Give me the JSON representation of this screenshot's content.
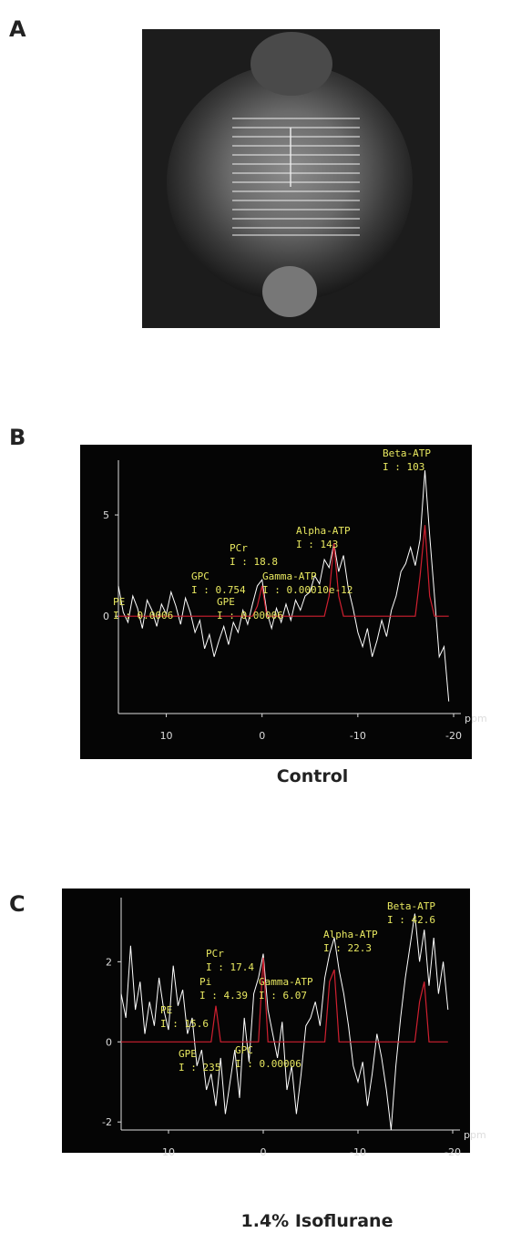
{
  "panel_labels": [
    "A",
    "B",
    "C"
  ],
  "chart_data": [
    {
      "type": "line",
      "caption": "Control",
      "xlabel": "ppm",
      "x": [
        15,
        14.5,
        14,
        13.5,
        13,
        12.5,
        12,
        11.5,
        11,
        10.5,
        10,
        9.5,
        9,
        8.5,
        8,
        7.5,
        7,
        6.5,
        6,
        5.5,
        5,
        4.5,
        4,
        3.5,
        3,
        2.5,
        2,
        1.5,
        1,
        0.5,
        0,
        -0.5,
        -1,
        -1.5,
        -2,
        -2.5,
        -3,
        -3.5,
        -4,
        -4.5,
        -5,
        -5.5,
        -6,
        -6.5,
        -7,
        -7.5,
        -8,
        -8.5,
        -9,
        -9.5,
        -10,
        -10.5,
        -11,
        -11.5,
        -12,
        -12.5,
        -13,
        -13.5,
        -14,
        -14.5,
        -15,
        -15.5,
        -16,
        -16.5,
        -17,
        -17.5,
        -18,
        -18.5,
        -19,
        -19.5
      ],
      "series": [
        {
          "color": "#ffffff",
          "values": [
            1.5,
            0.2,
            -0.3,
            1.0,
            0.4,
            -0.6,
            0.8,
            0.3,
            -0.5,
            0.6,
            0.1,
            1.2,
            0.5,
            -0.4,
            0.9,
            0.2,
            -0.8,
            -0.2,
            -1.6,
            -0.9,
            -2.0,
            -1.2,
            -0.5,
            -1.4,
            -0.3,
            -0.8,
            0.3,
            -0.4,
            0.6,
            1.5,
            1.8,
            0.2,
            -0.6,
            0.4,
            -0.3,
            0.6,
            -0.2,
            0.8,
            0.3,
            1.0,
            1.2,
            2.0,
            1.6,
            2.8,
            2.4,
            3.6,
            2.2,
            3.0,
            1.4,
            0.4,
            -0.8,
            -1.5,
            -0.6,
            -2.0,
            -1.2,
            -0.2,
            -1.0,
            0.3,
            1.0,
            2.2,
            2.6,
            3.4,
            2.5,
            3.8,
            7.2,
            4.0,
            1.0,
            -2.0,
            -1.5,
            -4.2
          ]
        },
        {
          "color": "#d02030",
          "values": [
            0,
            0,
            0,
            0,
            0,
            0,
            0,
            0,
            0,
            0,
            0,
            0,
            0,
            0,
            0,
            0,
            0,
            0,
            0,
            0,
            0,
            0,
            0,
            0,
            0,
            0,
            0,
            0,
            0,
            0.5,
            1.5,
            0,
            0,
            0,
            0,
            0,
            0,
            0,
            0,
            0,
            0,
            0,
            0,
            0,
            1.0,
            3.6,
            1.0,
            0,
            0,
            0,
            0,
            0,
            0,
            0,
            0,
            0,
            0,
            0,
            0,
            0,
            0,
            0,
            0,
            2.0,
            4.5,
            1.0,
            0,
            0,
            0,
            0
          ]
        }
      ],
      "xlim": [
        15,
        -20
      ],
      "xticks": [
        10,
        0,
        -10,
        -20
      ],
      "ylim": [
        -4.8,
        7.7
      ],
      "yticks": [
        0,
        5
      ],
      "annotations": [
        [
          "Beta-ATP",
          "I : 103"
        ],
        [
          "Alpha-ATP",
          "I : 143"
        ],
        [
          "PCr",
          "I : 18.8"
        ],
        [
          "GPC",
          "I : 0.754"
        ],
        [
          "Gamma-ATP",
          "I : 0.00010e-12"
        ],
        [
          "GPE",
          "I : 0.00006"
        ],
        [
          "PE",
          "I : 0.0006"
        ]
      ]
    },
    {
      "type": "line",
      "caption": "1.4% Isoflurane",
      "xlabel": "ppm",
      "x": [
        15,
        14.5,
        14,
        13.5,
        13,
        12.5,
        12,
        11.5,
        11,
        10.5,
        10,
        9.5,
        9,
        8.5,
        8,
        7.5,
        7,
        6.5,
        6,
        5.5,
        5,
        4.5,
        4,
        3.5,
        3,
        2.5,
        2,
        1.5,
        1,
        0.5,
        0,
        -0.5,
        -1,
        -1.5,
        -2,
        -2.5,
        -3,
        -3.5,
        -4,
        -4.5,
        -5,
        -5.5,
        -6,
        -6.5,
        -7,
        -7.5,
        -8,
        -8.5,
        -9,
        -9.5,
        -10,
        -10.5,
        -11,
        -11.5,
        -12,
        -12.5,
        -13,
        -13.5,
        -14,
        -14.5,
        -15,
        -15.5,
        -16,
        -16.5,
        -17,
        -17.5,
        -18,
        -18.5,
        -19,
        -19.5
      ],
      "series": [
        {
          "color": "#ffffff",
          "values": [
            1.2,
            0.6,
            2.4,
            0.8,
            1.5,
            0.2,
            1.0,
            0.4,
            1.6,
            0.8,
            0.3,
            1.9,
            0.9,
            1.3,
            0.2,
            0.6,
            -0.6,
            -0.2,
            -1.2,
            -0.8,
            -1.6,
            -0.4,
            -1.8,
            -1.0,
            -0.2,
            -1.4,
            0.6,
            -0.5,
            1.2,
            1.6,
            2.2,
            0.8,
            0.2,
            -0.4,
            0.5,
            -1.2,
            -0.6,
            -1.8,
            -0.8,
            0.4,
            0.6,
            1.0,
            0.4,
            1.6,
            2.2,
            2.6,
            1.8,
            1.2,
            0.4,
            -0.6,
            -1.0,
            -0.5,
            -1.6,
            -0.8,
            0.2,
            -0.4,
            -1.2,
            -2.2,
            -0.6,
            0.6,
            1.6,
            2.4,
            3.2,
            2.0,
            2.8,
            1.4,
            2.6,
            1.2,
            2.0,
            0.8
          ]
        },
        {
          "color": "#d02030",
          "values": [
            0,
            0,
            0,
            0,
            0,
            0,
            0,
            0,
            0,
            0,
            0,
            0,
            0,
            0,
            0,
            0,
            0,
            0,
            0,
            0,
            0.9,
            0,
            0,
            0,
            0,
            0,
            0,
            0,
            0,
            0,
            2.1,
            0,
            0,
            0,
            0,
            0,
            0,
            0,
            0,
            0,
            0,
            0,
            0,
            0,
            1.5,
            1.8,
            0,
            0,
            0,
            0,
            0,
            0,
            0,
            0,
            0,
            0,
            0,
            0,
            0,
            0,
            0,
            0,
            0,
            1.0,
            1.5,
            0,
            0,
            0,
            0,
            0
          ]
        }
      ],
      "xlim": [
        15,
        -20
      ],
      "xticks": [
        10,
        0,
        -10,
        -20
      ],
      "ylim": [
        -2.2,
        3.6
      ],
      "yticks": [
        -2,
        0,
        2
      ],
      "annotations": [
        [
          "Beta-ATP",
          "I : 42.6"
        ],
        [
          "Alpha-ATP",
          "I : 22.3"
        ],
        [
          "PCr",
          "I : 17.4"
        ],
        [
          "Pi",
          "I : 4.39"
        ],
        [
          "Gamma-ATP",
          "I : 6.07"
        ],
        [
          "PE",
          "I : 15.6"
        ],
        [
          "GPC",
          "I : 0.00006"
        ],
        [
          "GPE",
          "I : 235"
        ]
      ]
    }
  ]
}
